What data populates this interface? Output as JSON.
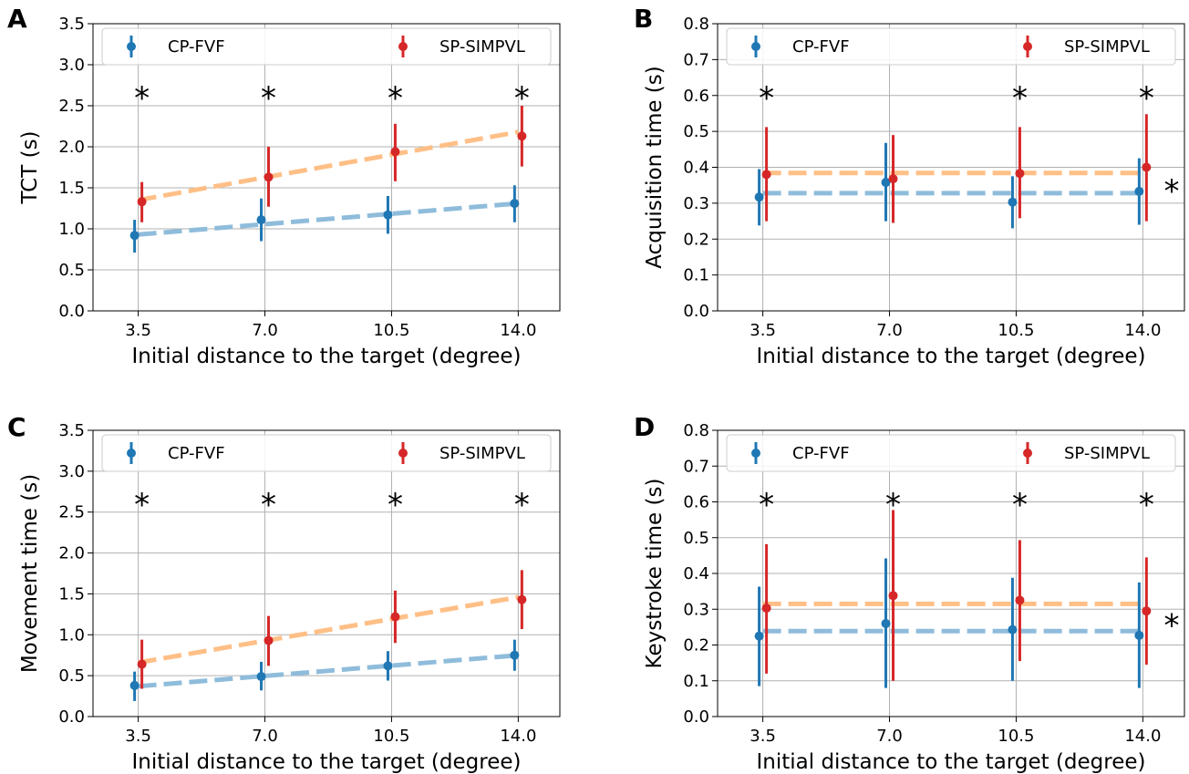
{
  "chart_data": [
    {
      "panel": "A",
      "type": "scatter",
      "xlabel": "Initial distance to the target (degree)",
      "ylabel": "TCT (s)",
      "x": [
        3.5,
        7.0,
        10.5,
        14.0
      ],
      "xticks": [
        "3.5",
        "7.0",
        "10.5",
        "14.0"
      ],
      "ylim": [
        0,
        3.5
      ],
      "yticks": [
        "0.0",
        "0.5",
        "1.0",
        "1.5",
        "2.0",
        "2.5",
        "3.0",
        "3.5"
      ],
      "grid": true,
      "legend": "top",
      "series": [
        {
          "name": "CP-FVF",
          "color": "#1f77b4",
          "fit_color": "#8fbcdb",
          "y": [
            0.92,
            1.11,
            1.17,
            1.31
          ],
          "err_low": [
            0.71,
            0.85,
            0.94,
            1.08
          ],
          "err_high": [
            1.11,
            1.37,
            1.4,
            1.53
          ],
          "fit": [
            0.93,
            1.31
          ]
        },
        {
          "name": "SP-SIMPVL",
          "color": "#d62728",
          "fit_color": "#ffbf86",
          "y": [
            1.33,
            1.63,
            1.94,
            2.13
          ],
          "err_low": [
            1.08,
            1.27,
            1.58,
            1.76
          ],
          "err_high": [
            1.57,
            2.0,
            2.28,
            2.5
          ],
          "fit": [
            1.35,
            2.18
          ]
        }
      ],
      "significance": [
        {
          "at": 3.5,
          "label": "*"
        },
        {
          "at": 7.0,
          "label": "*"
        },
        {
          "at": 10.5,
          "label": "*"
        },
        {
          "at": 14.0,
          "label": "*"
        }
      ]
    },
    {
      "panel": "B",
      "type": "scatter",
      "xlabel": "Initial distance to the target (degree)",
      "ylabel": "Acquisition time (s)",
      "x": [
        3.5,
        7.0,
        10.5,
        14.0
      ],
      "xticks": [
        "3.5",
        "7.0",
        "10.5",
        "14.0"
      ],
      "ylim": [
        0,
        0.8
      ],
      "yticks": [
        "0.0",
        "0.1",
        "0.2",
        "0.3",
        "0.4",
        "0.5",
        "0.6",
        "0.7",
        "0.8"
      ],
      "grid": true,
      "legend": "top",
      "series": [
        {
          "name": "CP-FVF",
          "color": "#1f77b4",
          "fit_color": "#8fbcdb",
          "y": [
            0.317,
            0.358,
            0.303,
            0.333
          ],
          "err_low": [
            0.238,
            0.25,
            0.23,
            0.24
          ],
          "err_high": [
            0.395,
            0.468,
            0.375,
            0.425
          ],
          "fit": [
            0.328,
            0.328
          ]
        },
        {
          "name": "SP-SIMPVL",
          "color": "#d62728",
          "fit_color": "#ffbf86",
          "y": [
            0.38,
            0.368,
            0.383,
            0.4
          ],
          "err_low": [
            0.25,
            0.245,
            0.258,
            0.25
          ],
          "err_high": [
            0.512,
            0.49,
            0.512,
            0.548
          ],
          "fit": [
            0.384,
            0.384
          ]
        }
      ],
      "significance": [
        {
          "at": 3.5,
          "label": "*"
        },
        {
          "at": 10.5,
          "label": "*"
        },
        {
          "at": 14.0,
          "label": "*"
        },
        {
          "at": "right",
          "label": "*"
        }
      ]
    },
    {
      "panel": "C",
      "type": "scatter",
      "xlabel": "Initial distance to the target (degree)",
      "ylabel": "Movement time (s)",
      "x": [
        3.5,
        7.0,
        10.5,
        14.0
      ],
      "xticks": [
        "3.5",
        "7.0",
        "10.5",
        "14.0"
      ],
      "ylim": [
        0,
        3.5
      ],
      "yticks": [
        "0.0",
        "0.5",
        "1.0",
        "1.5",
        "2.0",
        "2.5",
        "3.0",
        "3.5"
      ],
      "grid": true,
      "legend": "top",
      "series": [
        {
          "name": "CP-FVF",
          "color": "#1f77b4",
          "fit_color": "#8fbcdb",
          "y": [
            0.38,
            0.49,
            0.62,
            0.75
          ],
          "err_low": [
            0.19,
            0.32,
            0.44,
            0.56
          ],
          "err_high": [
            0.55,
            0.67,
            0.8,
            0.94
          ],
          "fit": [
            0.37,
            0.75
          ]
        },
        {
          "name": "SP-SIMPVL",
          "color": "#d62728",
          "fit_color": "#ffbf86",
          "y": [
            0.64,
            0.93,
            1.22,
            1.43
          ],
          "err_low": [
            0.34,
            0.62,
            0.9,
            1.07
          ],
          "err_high": [
            0.94,
            1.23,
            1.54,
            1.79
          ],
          "fit": [
            0.66,
            1.46
          ]
        }
      ],
      "significance": [
        {
          "at": 3.5,
          "label": "*"
        },
        {
          "at": 7.0,
          "label": "*"
        },
        {
          "at": 10.5,
          "label": "*"
        },
        {
          "at": 14.0,
          "label": "*"
        }
      ]
    },
    {
      "panel": "D",
      "type": "scatter",
      "xlabel": "Initial distance to the target (degree)",
      "ylabel": "Keystroke time (s)",
      "x": [
        3.5,
        7.0,
        10.5,
        14.0
      ],
      "xticks": [
        "3.5",
        "7.0",
        "10.5",
        "14.0"
      ],
      "ylim": [
        0,
        0.8
      ],
      "yticks": [
        "0.0",
        "0.1",
        "0.2",
        "0.3",
        "0.4",
        "0.5",
        "0.6",
        "0.7",
        "0.8"
      ],
      "grid": true,
      "legend": "top",
      "series": [
        {
          "name": "CP-FVF",
          "color": "#1f77b4",
          "fit_color": "#8fbcdb",
          "y": [
            0.225,
            0.26,
            0.243,
            0.227
          ],
          "err_low": [
            0.085,
            0.08,
            0.1,
            0.08
          ],
          "err_high": [
            0.363,
            0.442,
            0.388,
            0.375
          ],
          "fit": [
            0.239,
            0.239
          ]
        },
        {
          "name": "SP-SIMPVL",
          "color": "#d62728",
          "fit_color": "#ffbf86",
          "y": [
            0.303,
            0.338,
            0.325,
            0.295
          ],
          "err_low": [
            0.12,
            0.1,
            0.155,
            0.145
          ],
          "err_high": [
            0.482,
            0.577,
            0.493,
            0.445
          ],
          "fit": [
            0.315,
            0.315
          ]
        }
      ],
      "significance": [
        {
          "at": 3.5,
          "label": "*"
        },
        {
          "at": 7.0,
          "label": "*"
        },
        {
          "at": 10.5,
          "label": "*"
        },
        {
          "at": 14.0,
          "label": "*"
        },
        {
          "at": "right",
          "label": "*"
        }
      ]
    }
  ]
}
